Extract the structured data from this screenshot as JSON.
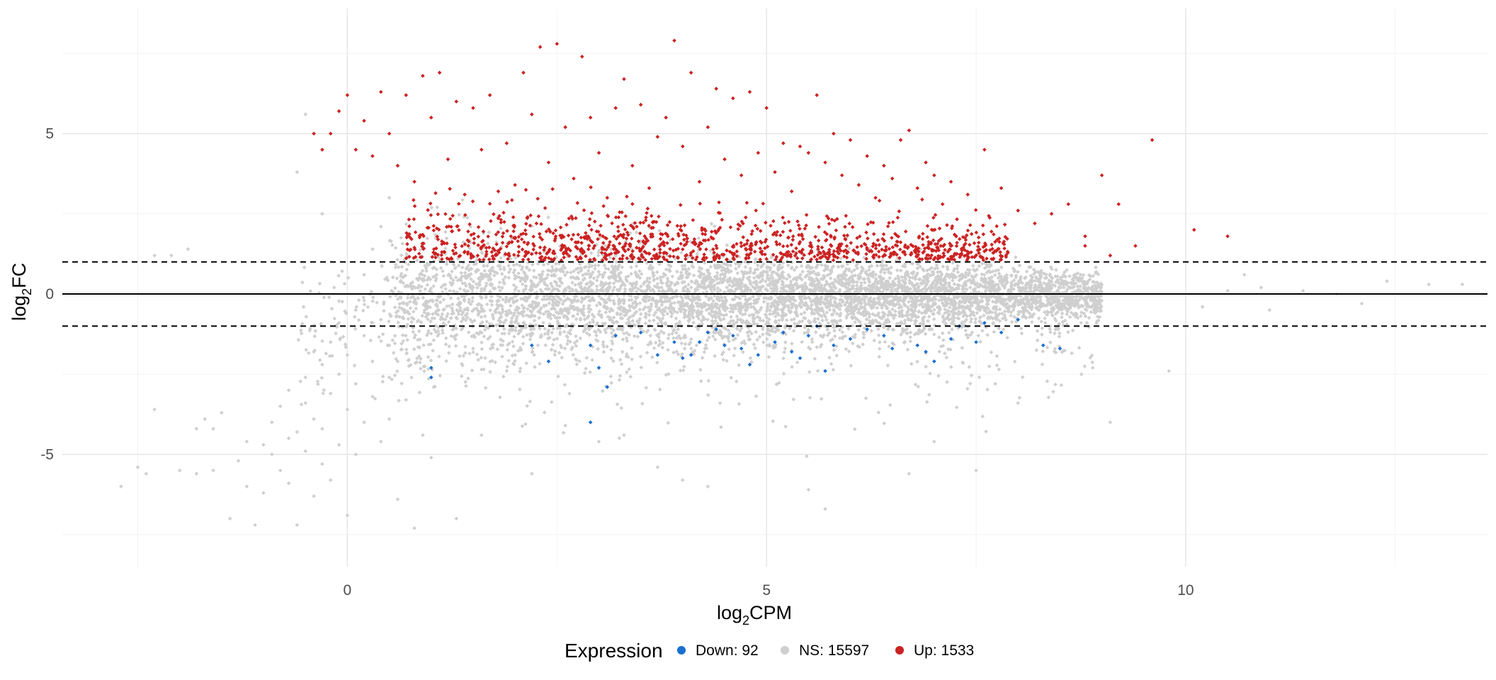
{
  "chart_data": {
    "type": "scatter",
    "title": "",
    "xlabel": {
      "base": "log",
      "sub": "2",
      "rest": "CPM"
    },
    "ylabel": {
      "base": "log",
      "sub": "2",
      "rest": "FC"
    },
    "xlim": [
      -3.4,
      13.6
    ],
    "ylim": [
      -8.5,
      8.9
    ],
    "x_ticks": [
      0,
      5,
      10
    ],
    "x_tick_labels": [
      "0",
      "5",
      "10"
    ],
    "y_ticks": [
      -5,
      0,
      5
    ],
    "y_tick_labels": [
      "-5",
      "0",
      "5"
    ],
    "grid": true,
    "reference_lines": {
      "solid": [
        0
      ],
      "dashed": [
        -1.0,
        1.0
      ]
    },
    "legend": {
      "position": "bottom",
      "title": "Expression",
      "items": [
        {
          "key": "down",
          "label": "Down: 92",
          "color": "#1a6fcf"
        },
        {
          "key": "ns",
          "label": "NS: 15597",
          "color": "#cfcfcf"
        },
        {
          "key": "up",
          "label": "Up: 1533",
          "color": "#cc2222"
        }
      ]
    },
    "series": [
      {
        "key": "ns",
        "color": "#cfcfcf",
        "points": [
          [
            -2.7,
            -6.0
          ],
          [
            -2.5,
            -5.4
          ],
          [
            -2.4,
            -5.6
          ],
          [
            -2.3,
            -3.6
          ],
          [
            -2.3,
            1.2
          ],
          [
            -2.1,
            1.2
          ],
          [
            -2.0,
            -5.5
          ],
          [
            -1.9,
            1.4
          ],
          [
            -1.8,
            -4.2
          ],
          [
            -1.8,
            -5.6
          ],
          [
            -1.7,
            -3.9
          ],
          [
            -1.6,
            -5.5
          ],
          [
            -1.6,
            -4.2
          ],
          [
            -1.5,
            -3.7
          ],
          [
            -1.4,
            -7.0
          ],
          [
            -1.3,
            -5.2
          ],
          [
            -1.2,
            -4.6
          ],
          [
            -1.2,
            -6.0
          ],
          [
            -1.1,
            -7.2
          ],
          [
            -1.0,
            -6.2
          ],
          [
            -1.0,
            -4.7
          ],
          [
            -0.9,
            -4.0
          ],
          [
            -0.9,
            -5.0
          ],
          [
            -0.8,
            -3.5
          ],
          [
            -0.8,
            -5.5
          ],
          [
            -0.7,
            -4.5
          ],
          [
            -0.7,
            -3.0
          ],
          [
            -0.7,
            -5.9
          ],
          [
            -0.6,
            -7.2
          ],
          [
            -0.6,
            -4.3
          ],
          [
            -0.5,
            -3.4
          ],
          [
            -0.5,
            -4.9
          ],
          [
            -0.5,
            -2.6
          ],
          [
            -0.4,
            -6.3
          ],
          [
            -0.4,
            -3.9
          ],
          [
            -0.4,
            -1.8
          ],
          [
            -0.3,
            -5.3
          ],
          [
            -0.3,
            -4.2
          ],
          [
            -0.3,
            -2.2
          ],
          [
            -0.2,
            -3.1
          ],
          [
            -0.2,
            -5.8
          ],
          [
            -0.2,
            -1.5
          ],
          [
            -0.1,
            -4.7
          ],
          [
            -0.1,
            -2.5
          ],
          [
            -0.1,
            -0.9
          ],
          [
            0.0,
            -6.9
          ],
          [
            0.0,
            -3.6
          ],
          [
            0.0,
            -1.9
          ],
          [
            0.1,
            -5.0
          ],
          [
            0.1,
            -2.8
          ],
          [
            0.1,
            -0.5
          ],
          [
            0.2,
            -4.0
          ],
          [
            0.2,
            -1.3
          ],
          [
            0.2,
            0.6
          ],
          [
            0.3,
            -3.2
          ],
          [
            0.3,
            -2.1
          ],
          [
            0.3,
            1.4
          ],
          [
            0.4,
            -4.6
          ],
          [
            0.4,
            -0.8
          ],
          [
            0.4,
            2.1
          ],
          [
            0.5,
            -2.6
          ],
          [
            0.5,
            -1.6
          ],
          [
            0.5,
            3.0
          ],
          [
            0.5,
            -3.9
          ],
          [
            0.6,
            -6.4
          ],
          [
            -0.6,
            3.8
          ],
          [
            -0.5,
            5.6
          ],
          [
            -0.3,
            2.5
          ],
          [
            0.2,
            -0.2
          ],
          [
            0.6,
            -2.1
          ],
          [
            0.7,
            -3.3
          ],
          [
            0.8,
            -7.3
          ],
          [
            0.9,
            -4.4
          ],
          [
            1.0,
            -5.1
          ],
          [
            1.3,
            -7.0
          ],
          [
            1.6,
            -4.4
          ],
          [
            2.2,
            -5.6
          ],
          [
            2.6,
            -4.1
          ],
          [
            3.0,
            -4.6
          ],
          [
            3.3,
            -4.4
          ],
          [
            3.7,
            -5.4
          ],
          [
            4.0,
            -5.8
          ],
          [
            4.3,
            -6.0
          ],
          [
            5.5,
            -6.1
          ],
          [
            5.7,
            -6.7
          ],
          [
            6.7,
            -5.6
          ],
          [
            7.5,
            -5.5
          ],
          [
            7.0,
            -4.6
          ],
          [
            9.1,
            -4.0
          ],
          [
            8.0,
            -3.4
          ],
          [
            9.8,
            -2.4
          ],
          [
            10.5,
            0.1
          ],
          [
            10.9,
            0.2
          ],
          [
            11.4,
            0.1
          ],
          [
            11.8,
            0.0
          ],
          [
            12.1,
            -0.3
          ],
          [
            12.4,
            0.4
          ],
          [
            12.9,
            0.3
          ],
          [
            13.3,
            0.3
          ],
          [
            11.0,
            -0.5
          ],
          [
            10.2,
            -0.4
          ],
          [
            10.7,
            0.6
          ]
        ]
      },
      {
        "key": "up",
        "color": "#cc2222",
        "points": [
          [
            -0.4,
            5.0
          ],
          [
            -0.3,
            4.5
          ],
          [
            -0.2,
            5.0
          ],
          [
            -0.1,
            5.7
          ],
          [
            0.0,
            6.2
          ],
          [
            0.1,
            4.5
          ],
          [
            0.2,
            5.4
          ],
          [
            0.3,
            4.3
          ],
          [
            0.4,
            6.3
          ],
          [
            0.5,
            5.0
          ],
          [
            0.6,
            4.0
          ],
          [
            0.7,
            6.2
          ],
          [
            0.8,
            3.5
          ],
          [
            0.9,
            6.8
          ],
          [
            1.0,
            5.5
          ],
          [
            1.1,
            6.9
          ],
          [
            1.2,
            4.2
          ],
          [
            1.3,
            6.0
          ],
          [
            1.4,
            3.1
          ],
          [
            1.5,
            5.8
          ],
          [
            1.6,
            4.5
          ],
          [
            1.7,
            6.2
          ],
          [
            1.8,
            3.2
          ],
          [
            1.9,
            4.7
          ],
          [
            2.0,
            3.4
          ],
          [
            2.1,
            6.9
          ],
          [
            2.2,
            5.6
          ],
          [
            2.3,
            7.7
          ],
          [
            2.4,
            4.1
          ],
          [
            2.5,
            7.8
          ],
          [
            2.6,
            5.2
          ],
          [
            2.7,
            3.6
          ],
          [
            2.8,
            7.4
          ],
          [
            2.9,
            5.5
          ],
          [
            3.0,
            4.4
          ],
          [
            3.1,
            3.0
          ],
          [
            3.2,
            5.8
          ],
          [
            3.3,
            6.7
          ],
          [
            3.4,
            4.0
          ],
          [
            3.5,
            5.9
          ],
          [
            3.6,
            3.3
          ],
          [
            3.7,
            4.9
          ],
          [
            3.8,
            5.5
          ],
          [
            3.9,
            7.9
          ],
          [
            4.0,
            4.6
          ],
          [
            4.1,
            6.9
          ],
          [
            4.2,
            3.5
          ],
          [
            4.3,
            5.2
          ],
          [
            4.4,
            6.4
          ],
          [
            4.5,
            4.2
          ],
          [
            4.6,
            6.1
          ],
          [
            4.7,
            3.7
          ],
          [
            4.8,
            6.3
          ],
          [
            4.9,
            4.4
          ],
          [
            5.0,
            5.8
          ],
          [
            5.1,
            3.8
          ],
          [
            5.2,
            4.7
          ],
          [
            5.3,
            3.2
          ],
          [
            5.4,
            4.6
          ],
          [
            5.5,
            4.4
          ],
          [
            5.6,
            6.2
          ],
          [
            5.7,
            4.1
          ],
          [
            5.8,
            5.0
          ],
          [
            5.9,
            3.7
          ],
          [
            6.0,
            4.8
          ],
          [
            6.1,
            3.4
          ],
          [
            6.2,
            4.3
          ],
          [
            6.3,
            3.0
          ],
          [
            6.4,
            4.0
          ],
          [
            6.5,
            3.6
          ],
          [
            6.6,
            4.8
          ],
          [
            6.7,
            5.1
          ],
          [
            6.8,
            3.3
          ],
          [
            6.9,
            4.1
          ],
          [
            7.0,
            3.7
          ],
          [
            7.1,
            2.8
          ],
          [
            7.2,
            3.5
          ],
          [
            7.4,
            3.1
          ],
          [
            7.6,
            4.5
          ],
          [
            7.8,
            3.3
          ],
          [
            8.0,
            2.6
          ],
          [
            8.2,
            2.2
          ],
          [
            8.4,
            2.5
          ],
          [
            8.6,
            2.8
          ],
          [
            8.8,
            1.8
          ],
          [
            9.0,
            3.7
          ],
          [
            9.2,
            2.8
          ],
          [
            9.6,
            4.8
          ],
          [
            10.1,
            2.0
          ],
          [
            10.5,
            1.8
          ],
          [
            9.4,
            1.5
          ],
          [
            9.1,
            1.2
          ],
          [
            8.8,
            1.5
          ]
        ]
      },
      {
        "key": "down",
        "color": "#1a6fcf",
        "points": [
          [
            1.0,
            -2.3
          ],
          [
            1.0,
            -2.6
          ],
          [
            2.2,
            -1.6
          ],
          [
            2.4,
            -2.1
          ],
          [
            2.9,
            -1.6
          ],
          [
            3.0,
            -2.3
          ],
          [
            3.1,
            -2.9
          ],
          [
            3.2,
            -1.3
          ],
          [
            2.9,
            -4.0
          ],
          [
            3.5,
            -1.2
          ],
          [
            3.7,
            -1.9
          ],
          [
            3.9,
            -1.5
          ],
          [
            4.0,
            -2.0
          ],
          [
            4.1,
            -1.9
          ],
          [
            4.2,
            -1.5
          ],
          [
            4.3,
            -1.2
          ],
          [
            4.4,
            -1.1
          ],
          [
            4.5,
            -1.6
          ],
          [
            4.6,
            -1.3
          ],
          [
            4.7,
            -1.7
          ],
          [
            4.8,
            -2.2
          ],
          [
            4.9,
            -1.9
          ],
          [
            5.1,
            -1.5
          ],
          [
            5.2,
            -1.2
          ],
          [
            5.3,
            -1.8
          ],
          [
            5.4,
            -2.0
          ],
          [
            5.5,
            -1.3
          ],
          [
            5.6,
            -1.0
          ],
          [
            5.7,
            -2.4
          ],
          [
            5.8,
            -1.6
          ],
          [
            6.0,
            -1.4
          ],
          [
            6.2,
            -1.1
          ],
          [
            6.4,
            -1.3
          ],
          [
            6.5,
            -1.7
          ],
          [
            6.8,
            -1.6
          ],
          [
            6.9,
            -1.8
          ],
          [
            7.0,
            -2.1
          ],
          [
            7.2,
            -1.4
          ],
          [
            7.3,
            -1.0
          ],
          [
            7.5,
            -1.5
          ],
          [
            7.6,
            -0.9
          ],
          [
            7.8,
            -1.2
          ],
          [
            8.0,
            -0.8
          ],
          [
            8.3,
            -1.6
          ],
          [
            8.5,
            -1.7
          ]
        ]
      }
    ]
  }
}
